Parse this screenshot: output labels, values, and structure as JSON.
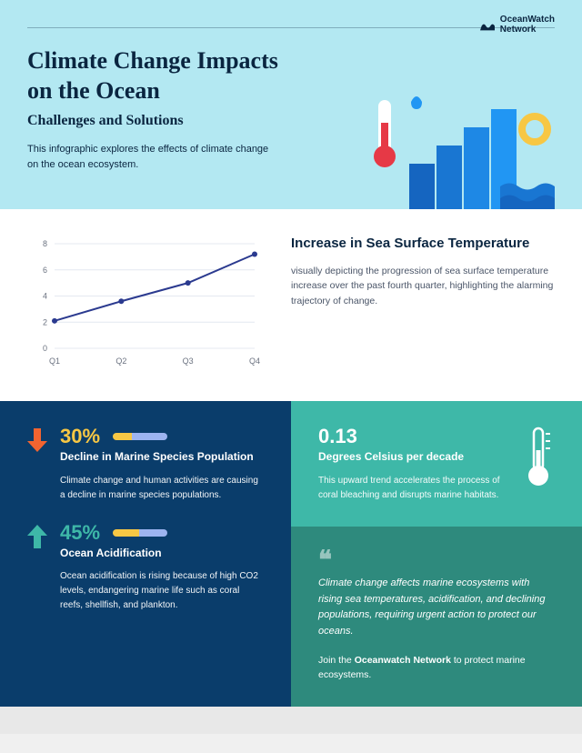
{
  "logo": {
    "text": "OceanWatch\nNetwork"
  },
  "header": {
    "title": "Climate Change Impacts on the Ocean",
    "subtitle": "Challenges and Solutions",
    "description": "This infographic explores the effects of climate change on the ocean ecosystem.",
    "bg_color": "#b3e8f2",
    "title_color": "#0a2540",
    "title_fontsize": 26,
    "subtitle_fontsize": 16
  },
  "chart": {
    "type": "line",
    "title": "Increase in Sea Surface Temperature",
    "description": "visually depicting the progression of sea surface temperature increase over the past fourth quarter, highlighting the alarming trajectory of change.",
    "categories": [
      "Q1",
      "Q2",
      "Q3",
      "Q4"
    ],
    "values": [
      2.1,
      3.6,
      5.0,
      7.2
    ],
    "ylim": [
      0,
      8
    ],
    "ytick_step": 2,
    "line_color": "#2b3a8f",
    "marker_color": "#2b3a8f",
    "grid_color": "#e4e8f0",
    "axis_label_color": "#6b7280",
    "background_color": "#ffffff",
    "axis_fontsize": 9,
    "line_width": 2,
    "marker_radius": 3
  },
  "stat1": {
    "arrow_color": "#f26430",
    "number": "30%",
    "number_color": "#f7c744",
    "label": "Decline in Marine Species Population",
    "body": "Climate change and human activities are causing a decline in marine species populations.",
    "bg_color": "#0a3d6b"
  },
  "stat2": {
    "arrow_color": "#3eb8a8",
    "number": "45%",
    "number_color": "#3eb8a8",
    "label": "Ocean Acidification",
    "body": "Ocean acidification is rising because of high CO2 levels, endangering marine life such as coral reefs, shellfish, and plankton."
  },
  "teal_box": {
    "number": "0.13",
    "label": "Degrees Celsius per decade",
    "body": "This upward trend accelerates the process of coral bleaching and disrupts marine habitats.",
    "bg_color": "#3eb8a8",
    "icon_color": "#ffffff"
  },
  "quote_box": {
    "quote": "Climate change affects marine ecosystems with rising sea temperatures, acidification, and declining populations, requiring urgent action to protect our oceans.",
    "cta_prefix": "Join the ",
    "cta_bold": "Oceanwatch Network",
    "cta_suffix": " to protect marine ecosystems.",
    "bg_color": "#2e8a7d"
  }
}
